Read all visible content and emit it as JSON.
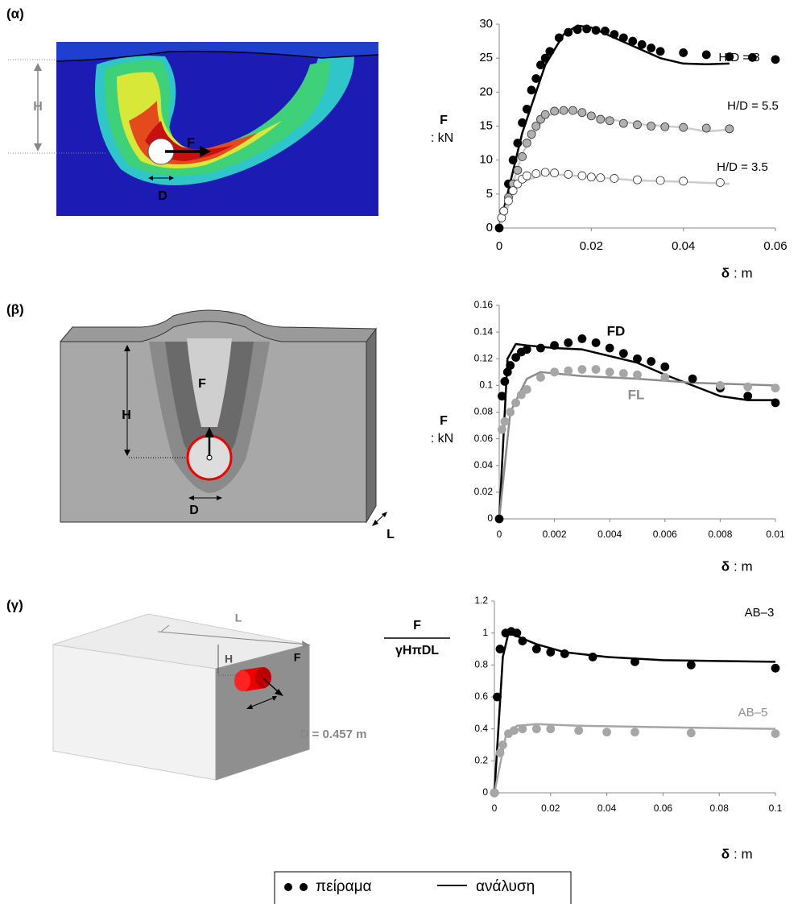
{
  "panels": [
    {
      "label": "(α)",
      "annotations": [
        "H",
        "D",
        "F"
      ]
    },
    {
      "label": "(β)",
      "annotations": [
        "H",
        "F",
        "D",
        "L"
      ]
    },
    {
      "label": "(γ)",
      "annotations": [
        "L",
        "H",
        "F",
        "D = 0.457 m"
      ]
    }
  ],
  "legend": [
    "πείραμα",
    "ανάλυση"
  ],
  "chart_data": [
    {
      "type": "line",
      "xlabel": "δ",
      "xlabel_unit": ": m",
      "ylabel": "F",
      "ylabel_unit": ": kN",
      "xlim": [
        0,
        0.06
      ],
      "xticks": [
        0,
        0.02,
        0.04,
        0.06
      ],
      "ylim": [
        0,
        30
      ],
      "yticks": [
        0,
        5,
        10,
        15,
        20,
        25,
        30
      ],
      "series": [
        {
          "name": "H/D = 8",
          "marker_fill": "#000000",
          "marker_edge": "#000000",
          "line_color": "#000000",
          "label_color": "#000000",
          "label_bold": false,
          "points": {
            "x": [
              0,
              0.002,
              0.003,
              0.004,
              0.005,
              0.006,
              0.007,
              0.008,
              0.009,
              0.01,
              0.011,
              0.013,
              0.015,
              0.017,
              0.019,
              0.021,
              0.023,
              0.025,
              0.027,
              0.029,
              0.031,
              0.033,
              0.035,
              0.04,
              0.045,
              0.05,
              0.055,
              0.06
            ],
            "y": [
              0,
              6.5,
              10,
              12.5,
              15.5,
              17.5,
              20.3,
              22,
              24,
              25,
              26,
              28,
              28.8,
              29.2,
              29.3,
              29.1,
              29,
              28.5,
              28,
              27.5,
              27,
              26.5,
              26,
              25.8,
              25.5,
              25.2,
              25.1,
              24.8
            ]
          },
          "curve": {
            "x": [
              0,
              0.005,
              0.01,
              0.014,
              0.017,
              0.02,
              0.025,
              0.03,
              0.035,
              0.04,
              0.045,
              0.05
            ],
            "y": [
              0,
              14,
              24,
              28.5,
              29.8,
              29.5,
              28,
              26.5,
              25,
              24.2,
              24.1,
              24.2
            ]
          }
        },
        {
          "name": "H/D = 5.5",
          "marker_fill": "#b0b0b0",
          "marker_edge": "#333333",
          "line_color": "#cccccc",
          "label_color": "#000000",
          "label_bold": false,
          "points": {
            "x": [
              0.001,
              0.002,
              0.003,
              0.004,
              0.005,
              0.006,
              0.007,
              0.008,
              0.009,
              0.01,
              0.012,
              0.014,
              0.016,
              0.018,
              0.02,
              0.022,
              0.024,
              0.027,
              0.03,
              0.033,
              0.036,
              0.04,
              0.045,
              0.05
            ],
            "y": [
              2.5,
              4.5,
              6.5,
              8.5,
              10.5,
              12.5,
              13.8,
              15,
              16,
              16.7,
              17.2,
              17.3,
              17.3,
              17,
              16.5,
              16,
              15.8,
              15.4,
              15.2,
              15,
              14.9,
              14.8,
              14.7,
              14.6
            ]
          },
          "curve": {
            "x": [
              0,
              0.005,
              0.01,
              0.015,
              0.02,
              0.03,
              0.04,
              0.045,
              0.05
            ],
            "y": [
              0,
              11,
              16.5,
              17.3,
              16.5,
              15.3,
              14.8,
              14.2,
              14.5
            ]
          }
        },
        {
          "name": "H/D = 3.5",
          "marker_fill": "#ffffff",
          "marker_edge": "#333333",
          "line_color": "#cccccc",
          "label_color": "#000000",
          "label_bold": false,
          "points": {
            "x": [
              0.0005,
              0.001,
              0.002,
              0.003,
              0.004,
              0.005,
              0.006,
              0.008,
              0.01,
              0.012,
              0.015,
              0.018,
              0.02,
              0.022,
              0.025,
              0.03,
              0.035,
              0.04,
              0.048
            ],
            "y": [
              1.5,
              2.5,
              4,
              5.5,
              6.5,
              7.2,
              7.7,
              8,
              8.2,
              8.1,
              7.9,
              7.7,
              7.5,
              7.4,
              7.3,
              7.1,
              7,
              6.9,
              6.7
            ]
          },
          "curve": {
            "x": [
              0,
              0.004,
              0.01,
              0.02,
              0.03,
              0.04,
              0.05
            ],
            "y": [
              0,
              6.5,
              8,
              7.5,
              7,
              6.8,
              6.5
            ]
          }
        }
      ]
    },
    {
      "type": "line",
      "xlabel": "δ",
      "xlabel_unit": ": m",
      "ylabel": "F",
      "ylabel_unit": ": kN",
      "xlim": [
        0,
        0.01
      ],
      "xticks": [
        0,
        0.002,
        0.004,
        0.006,
        0.008,
        0.01
      ],
      "ylim": [
        0,
        0.16
      ],
      "yticks": [
        0,
        0.02,
        0.04,
        0.06,
        0.08,
        0.1,
        0.12,
        0.14,
        0.16
      ],
      "series": [
        {
          "name": "FD",
          "marker_fill": "#000000",
          "marker_edge": "#000000",
          "line_color": "#000000",
          "label_color": "#000000",
          "label_bold": true,
          "points": {
            "x": [
              0,
              0.0001,
              0.0002,
              0.0003,
              0.0004,
              0.0006,
              0.0008,
              0.001,
              0.0015,
              0.002,
              0.0025,
              0.003,
              0.0035,
              0.004,
              0.0045,
              0.005,
              0.0055,
              0.006,
              0.007,
              0.008,
              0.009,
              0.01
            ],
            "y": [
              0,
              0.092,
              0.103,
              0.11,
              0.115,
              0.121,
              0.125,
              0.127,
              0.128,
              0.13,
              0.132,
              0.135,
              0.132,
              0.128,
              0.124,
              0.12,
              0.118,
              0.114,
              0.105,
              0.098,
              0.092,
              0.087
            ]
          },
          "curve": {
            "x": [
              0,
              0.0003,
              0.0006,
              0.001,
              0.002,
              0.003,
              0.004,
              0.005,
              0.006,
              0.007,
              0.008,
              0.009,
              0.01
            ],
            "y": [
              0,
              0.12,
              0.131,
              0.13,
              0.128,
              0.127,
              0.122,
              0.117,
              0.108,
              0.1,
              0.092,
              0.089,
              0.089
            ]
          }
        },
        {
          "name": "FL",
          "marker_fill": "#a6a6a6",
          "marker_edge": "#a6a6a6",
          "line_color": "#8c8c8c",
          "label_color": "#8c8c8c",
          "label_bold": true,
          "points": {
            "x": [
              0.0001,
              0.0002,
              0.0004,
              0.0006,
              0.0008,
              0.001,
              0.0015,
              0.002,
              0.0025,
              0.003,
              0.0035,
              0.004,
              0.0045,
              0.005,
              0.006,
              0.008,
              0.009,
              0.01
            ],
            "y": [
              0.067,
              0.073,
              0.08,
              0.087,
              0.093,
              0.097,
              0.106,
              0.11,
              0.111,
              0.112,
              0.112,
              0.11,
              0.109,
              0.108,
              0.106,
              0.1,
              0.099,
              0.098
            ]
          },
          "curve": {
            "x": [
              0,
              0.0004,
              0.001,
              0.0015,
              0.003,
              0.005,
              0.007,
              0.01
            ],
            "y": [
              0,
              0.08,
              0.105,
              0.11,
              0.107,
              0.105,
              0.102,
              0.1
            ]
          }
        }
      ]
    },
    {
      "type": "line",
      "xlabel": "δ",
      "xlabel_unit": ": m",
      "ylabel": "F",
      "ylabel_denominator": "γHπDL",
      "xlim": [
        0,
        0.1
      ],
      "xticks": [
        0,
        0.02,
        0.04,
        0.06,
        0.08,
        0.1
      ],
      "ylim": [
        0,
        1.2
      ],
      "yticks": [
        0,
        0.2,
        0.4,
        0.6,
        0.8,
        1,
        1.2
      ],
      "series": [
        {
          "name": "AB–3",
          "marker_fill": "#000000",
          "marker_edge": "#000000",
          "line_color": "#000000",
          "label_color": "#000000",
          "label_bold": false,
          "points": {
            "x": [
              0,
              0.001,
              0.002,
              0.004,
              0.006,
              0.008,
              0.01,
              0.015,
              0.02,
              0.025,
              0.035,
              0.05,
              0.07,
              0.1
            ],
            "y": [
              0,
              0.6,
              0.9,
              1.0,
              1.01,
              1.0,
              0.95,
              0.9,
              0.88,
              0.87,
              0.85,
              0.82,
              0.8,
              0.78
            ]
          },
          "curve": {
            "x": [
              0,
              0.003,
              0.005,
              0.008,
              0.015,
              0.025,
              0.04,
              0.06,
              0.1
            ],
            "y": [
              0,
              0.85,
              1.0,
              0.98,
              0.93,
              0.88,
              0.85,
              0.83,
              0.82
            ]
          }
        },
        {
          "name": "AB–5",
          "marker_fill": "#a6a6a6",
          "marker_edge": "#a6a6a6",
          "line_color": "#a6a6a6",
          "label_color": "#8c8c8c",
          "label_bold": false,
          "points": {
            "x": [
              0,
              0.002,
              0.003,
              0.005,
              0.007,
              0.01,
              0.015,
              0.02,
              0.03,
              0.04,
              0.05,
              0.07,
              0.1
            ],
            "y": [
              0,
              0.25,
              0.3,
              0.37,
              0.39,
              0.4,
              0.4,
              0.4,
              0.39,
              0.38,
              0.38,
              0.375,
              0.37
            ]
          },
          "curve": {
            "x": [
              0,
              0.004,
              0.008,
              0.015,
              0.03,
              0.06,
              0.1
            ],
            "y": [
              0,
              0.35,
              0.42,
              0.43,
              0.42,
              0.41,
              0.4
            ]
          }
        }
      ]
    }
  ]
}
